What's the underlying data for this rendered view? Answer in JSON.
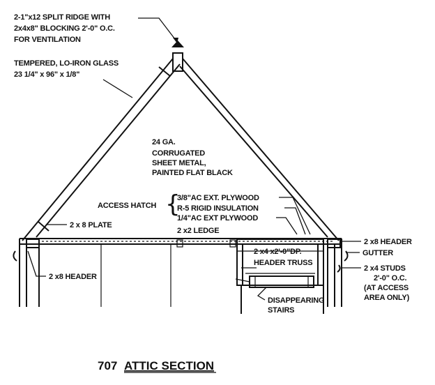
{
  "title": {
    "number": "707",
    "text": "ATTIC SECTION"
  },
  "labels": {
    "split_ridge": [
      "2-1\"x12  SPLIT RIDGE  WITH",
      "2x4x8\" BLOCKING  2'-0\" O.C.",
      "FOR VENTILATION"
    ],
    "glass": [
      "TEMPERED, LO-IRON GLASS",
      "23 1/4\" x 96\" x 1/8\""
    ],
    "sheet_metal": [
      "24 GA.",
      "CORRUGATED",
      "SHEET METAL,",
      "PAINTED FLAT BLACK"
    ],
    "access_hatch": "ACCESS  HATCH",
    "hatch_layers": [
      "3/8\"AC EXT. PLYWOOD",
      "R-5 RIGID  INSULATION",
      "1/4\"AC EXT PLYWOOD"
    ],
    "plate": "2 x 8  PLATE",
    "ledge": "2 x2  LEDGE",
    "header_right": "2 x8  HEADER",
    "gutter": "GUTTER",
    "header_truss": [
      "2 x4 x2'-0\"DP.",
      "HEADER TRUSS"
    ],
    "studs": [
      "2 x4  STUDS",
      "2'-0\" O.C.",
      "(AT ACCESS",
      "AREA ONLY)"
    ],
    "header_left": "2 x8  HEADER",
    "stairs": [
      "DISAPPEARING",
      "STAIRS"
    ]
  }
}
